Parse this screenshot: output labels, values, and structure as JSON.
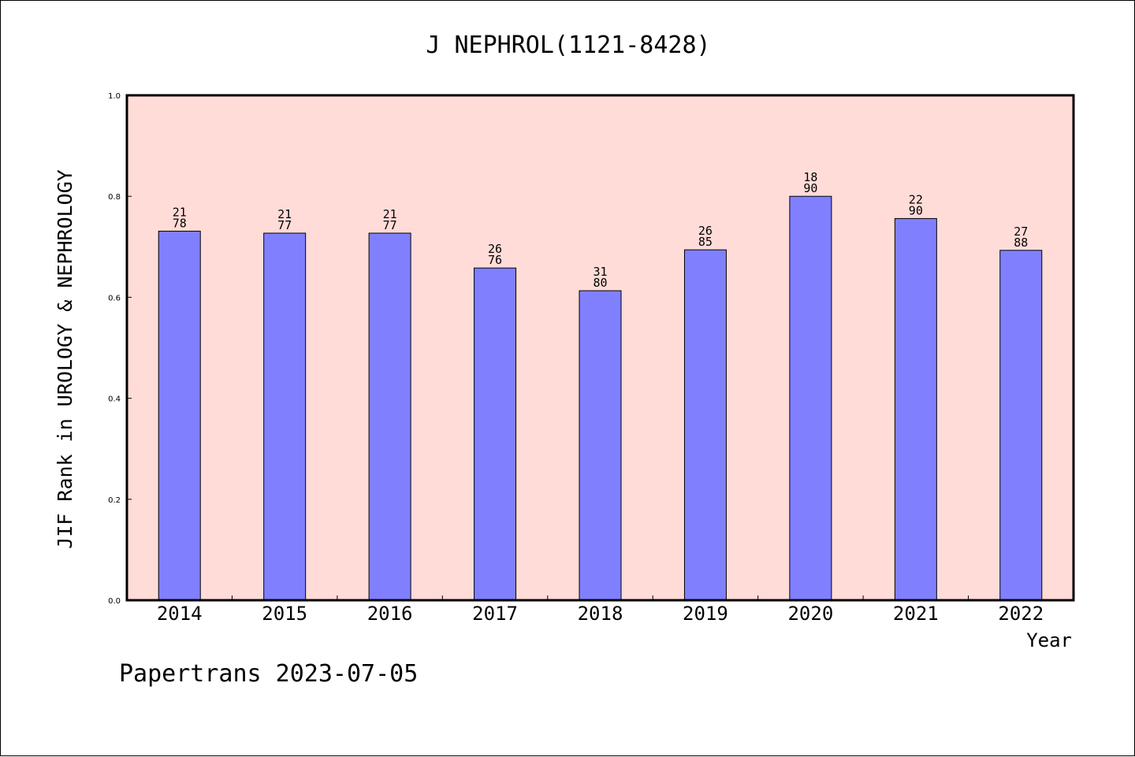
{
  "chart_data": {
    "type": "bar",
    "title": "J NEPHROL(1121-8428)",
    "xlabel": "Year",
    "ylabel": "JIF Rank in UROLOGY & NEPHROLOGY",
    "ylim": [
      0,
      1.0
    ],
    "yticks": [
      "0.0",
      "0.2",
      "0.4",
      "0.6",
      "0.8",
      "1.0"
    ],
    "categories": [
      "2014",
      "2015",
      "2016",
      "2017",
      "2018",
      "2019",
      "2020",
      "2021",
      "2022"
    ],
    "values": [
      0.731,
      0.727,
      0.727,
      0.658,
      0.613,
      0.694,
      0.8,
      0.756,
      0.693
    ],
    "rank": [
      "21",
      "21",
      "21",
      "26",
      "31",
      "26",
      "18",
      "22",
      "27"
    ],
    "total": [
      "78",
      "77",
      "77",
      "76",
      "80",
      "85",
      "90",
      "90",
      "88"
    ],
    "grid": false,
    "colors": {
      "plot_background": "#ffdcd8",
      "bar_fill": "#8080ff",
      "bar_stroke": "#000000"
    }
  },
  "footer": "Papertrans 2023-07-05"
}
